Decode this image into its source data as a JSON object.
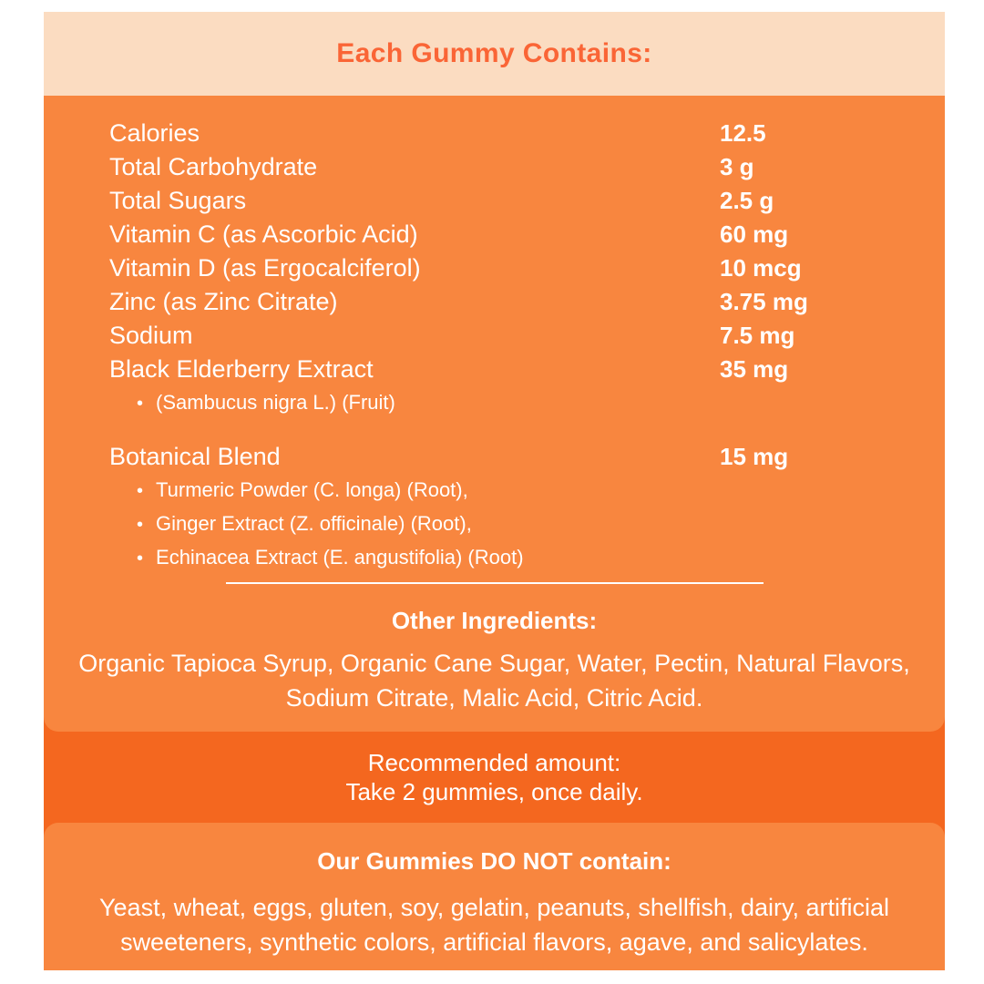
{
  "colors": {
    "page_bg": "#FFFFFF",
    "header_bg": "#FBDCC1",
    "title_text": "#FA6536",
    "panel_bg": "#F8863F",
    "band_bg": "#F4671F",
    "body_text": "#FFFFFF"
  },
  "header": {
    "title": "Each Gummy Contains:"
  },
  "nutrients": {
    "rows": [
      {
        "label": "Calories",
        "value": "12.5"
      },
      {
        "label": "Total Carbohydrate",
        "value": "3 g"
      },
      {
        "label": "Total Sugars",
        "value": "2.5 g"
      },
      {
        "label": "Vitamin C (as Ascorbic Acid)",
        "value": "60 mg"
      },
      {
        "label": "Vitamin D (as Ergocalciferol)",
        "value": "10 mcg"
      },
      {
        "label": "Zinc (as Zinc Citrate)",
        "value": "3.75 mg"
      },
      {
        "label": "Sodium",
        "value": "7.5 mg"
      },
      {
        "label": "Black Elderberry Extract",
        "value": "35 mg",
        "sub": [
          "(Sambucus nigra L.) (Fruit)"
        ]
      },
      {
        "label": "Botanical Blend",
        "value": "15 mg",
        "sub": [
          "Turmeric Powder (C. longa) (Root),",
          "Ginger Extract (Z. officinale) (Root),",
          "Echinacea Extract (E. angustifolia) (Root)"
        ]
      }
    ],
    "bullet_char": "•"
  },
  "other_ingredients": {
    "heading": "Other Ingredients:",
    "text": "Organic Tapioca Syrup, Organic Cane Sugar, Water, Pectin, Natural Flavors, Sodium Citrate, Malic Acid, Citric Acid."
  },
  "recommended": {
    "line1": "Recommended amount:",
    "line2": "Take 2 gummies, once daily."
  },
  "do_not_contain": {
    "heading": "Our Gummies DO NOT contain:",
    "text": "Yeast, wheat, eggs, gluten, soy, gelatin, peanuts, shellfish, dairy, artificial sweeteners, synthetic colors, artificial flavors, agave, and salicylates."
  }
}
